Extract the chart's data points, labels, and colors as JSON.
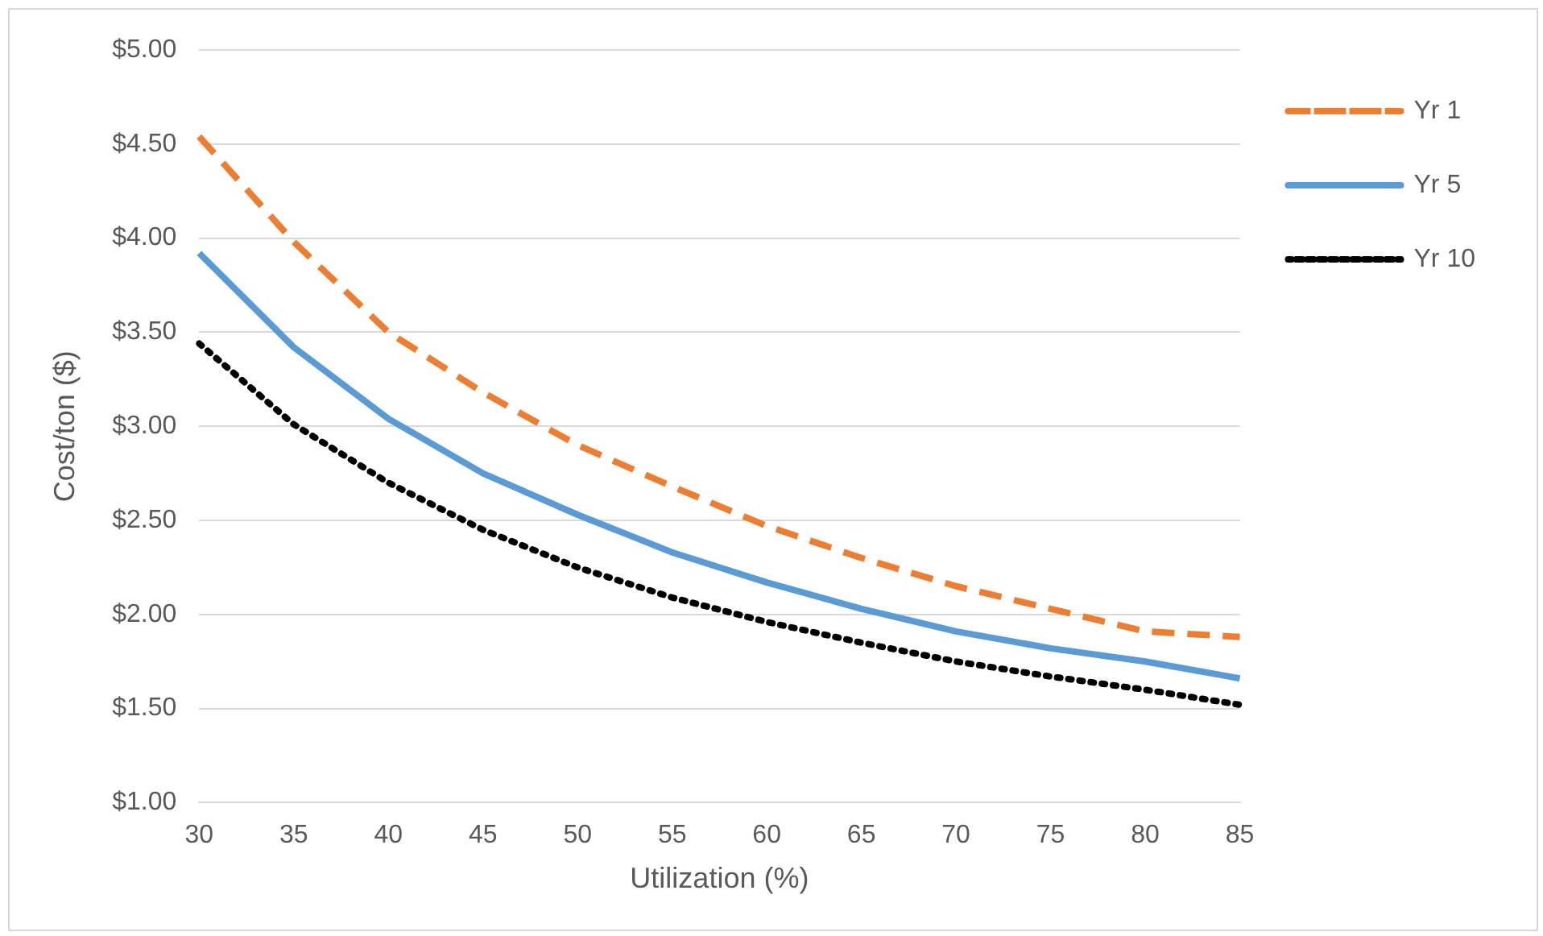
{
  "chart_data": {
    "type": "line",
    "xlabel": "Utilization (%)",
    "ylabel": "Cost/ton ($)",
    "categories": [
      "30",
      "35",
      "40",
      "45",
      "50",
      "55",
      "60",
      "65",
      "70",
      "75",
      "80",
      "85"
    ],
    "ylim": [
      1,
      5
    ],
    "yticks": [
      {
        "value": 1,
        "label": "$1.00"
      },
      {
        "value": 1.5,
        "label": "$1.50"
      },
      {
        "value": 2,
        "label": "$2.00"
      },
      {
        "value": 2.5,
        "label": "$2.50"
      },
      {
        "value": 3,
        "label": "$3.00"
      },
      {
        "value": 3.5,
        "label": "$3.50"
      },
      {
        "value": 4,
        "label": "$4.00"
      },
      {
        "value": 4.5,
        "label": "$4.50"
      },
      {
        "value": 5,
        "label": "$5.00"
      }
    ],
    "grid": "y",
    "legend": "top right",
    "marker": "none",
    "series": [
      {
        "name": "Yr 1",
        "color": "#ed7d31",
        "line_style": "dashed",
        "values": [
          4.54,
          3.98,
          3.5,
          3.18,
          2.9,
          2.68,
          2.47,
          2.3,
          2.15,
          2.03,
          1.91,
          1.88
        ]
      },
      {
        "name": "Yr 5",
        "color": "#5b9bd5",
        "line_style": "solid",
        "values": [
          3.92,
          3.42,
          3.04,
          2.75,
          2.53,
          2.33,
          2.17,
          2.03,
          1.91,
          1.82,
          1.75,
          1.66
        ]
      },
      {
        "name": "Yr 10",
        "color": "#000000",
        "line_style": "dotted",
        "values": [
          3.44,
          3.01,
          2.7,
          2.45,
          2.25,
          2.09,
          1.96,
          1.85,
          1.75,
          1.67,
          1.6,
          1.52
        ]
      }
    ]
  }
}
